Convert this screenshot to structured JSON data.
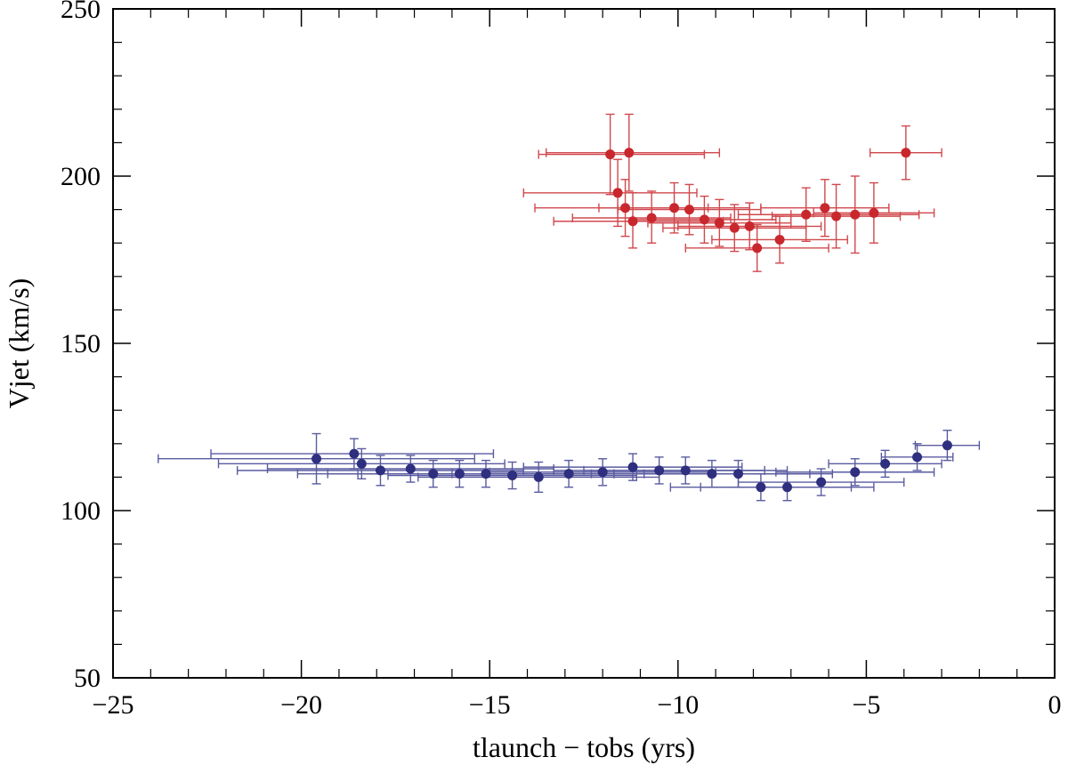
{
  "chart_data": {
    "type": "scatter",
    "title": "",
    "xlabel": "tlaunch − tobs (yrs)",
    "ylabel": "Vjet (km/s)",
    "xlim": [
      -25,
      0
    ],
    "ylim": [
      50,
      250
    ],
    "xticks": [
      -25,
      -20,
      -15,
      -10,
      -5,
      0
    ],
    "xtick_labels": [
      "−25",
      "−20",
      "−15",
      "−10",
      "−5",
      "0"
    ],
    "yticks": [
      50,
      100,
      150,
      200,
      250
    ],
    "ytick_labels": [
      "50",
      "100",
      "150",
      "200",
      "250"
    ],
    "grid": false,
    "series": [
      {
        "name": "red",
        "color": "#c8282d",
        "errcolor": "#d0484d",
        "points": [
          {
            "x": -11.8,
            "y": 206.5,
            "xlo": -13.7,
            "xhi": -9.3,
            "ylo": 194.5,
            "yhi": 218.5
          },
          {
            "x": -11.3,
            "y": 207.0,
            "xlo": -13.5,
            "xhi": -8.9,
            "ylo": 195.5,
            "yhi": 218.5
          },
          {
            "x": -11.6,
            "y": 195.0,
            "xlo": -14.1,
            "xhi": -9.5,
            "ylo": 185.0,
            "yhi": 205.0
          },
          {
            "x": -11.4,
            "y": 190.5,
            "xlo": -13.8,
            "xhi": -9.2,
            "ylo": 182.0,
            "yhi": 199.0
          },
          {
            "x": -11.2,
            "y": 186.5,
            "xlo": -13.3,
            "xhi": -8.8,
            "ylo": 178.5,
            "yhi": 195.0
          },
          {
            "x": -10.7,
            "y": 187.5,
            "xlo": -12.8,
            "xhi": -8.6,
            "ylo": 180.0,
            "yhi": 195.5
          },
          {
            "x": -10.1,
            "y": 190.5,
            "xlo": -12.1,
            "xhi": -8.1,
            "ylo": 183.0,
            "yhi": 198.0
          },
          {
            "x": -9.7,
            "y": 190.0,
            "xlo": -11.6,
            "xhi": -7.8,
            "ylo": 182.5,
            "yhi": 197.5
          },
          {
            "x": -9.3,
            "y": 187.0,
            "xlo": -11.2,
            "xhi": -7.4,
            "ylo": 180.0,
            "yhi": 194.0
          },
          {
            "x": -8.9,
            "y": 186.0,
            "xlo": -10.8,
            "xhi": -7.0,
            "ylo": 179.0,
            "yhi": 193.0
          },
          {
            "x": -8.5,
            "y": 184.5,
            "xlo": -10.4,
            "xhi": -6.6,
            "ylo": 177.5,
            "yhi": 191.5
          },
          {
            "x": -8.1,
            "y": 185.0,
            "xlo": -10.0,
            "xhi": -6.2,
            "ylo": 178.0,
            "yhi": 192.0
          },
          {
            "x": -7.9,
            "y": 178.5,
            "xlo": -9.8,
            "xhi": -6.0,
            "ylo": 171.5,
            "yhi": 185.5
          },
          {
            "x": -7.3,
            "y": 181.0,
            "xlo": -9.1,
            "xhi": -5.5,
            "ylo": 174.0,
            "yhi": 188.0
          },
          {
            "x": -6.6,
            "y": 188.5,
            "xlo": -8.4,
            "xhi": -4.8,
            "ylo": 180.5,
            "yhi": 196.5
          },
          {
            "x": -6.1,
            "y": 190.5,
            "xlo": -7.8,
            "xhi": -4.4,
            "ylo": 182.0,
            "yhi": 199.0
          },
          {
            "x": -5.8,
            "y": 188.0,
            "xlo": -7.5,
            "xhi": -4.1,
            "ylo": 178.5,
            "yhi": 197.5
          },
          {
            "x": -5.3,
            "y": 188.5,
            "xlo": -7.0,
            "xhi": -3.6,
            "ylo": 177.0,
            "yhi": 200.0
          },
          {
            "x": -4.8,
            "y": 189.0,
            "xlo": -6.4,
            "xhi": -3.2,
            "ylo": 180.0,
            "yhi": 198.0
          },
          {
            "x": -3.95,
            "y": 207.0,
            "xlo": -4.9,
            "xhi": -3.0,
            "ylo": 199.0,
            "yhi": 215.0
          }
        ]
      },
      {
        "name": "blue",
        "color": "#2e2f7e",
        "errcolor": "#5a5ba0",
        "points": [
          {
            "x": -19.6,
            "y": 115.5,
            "xlo": -23.8,
            "xhi": -15.4,
            "ylo": 108.0,
            "yhi": 123.0
          },
          {
            "x": -18.6,
            "y": 117.0,
            "xlo": -22.4,
            "xhi": -14.9,
            "ylo": 112.5,
            "yhi": 121.5
          },
          {
            "x": -18.4,
            "y": 114.0,
            "xlo": -22.2,
            "xhi": -14.6,
            "ylo": 109.5,
            "yhi": 118.5
          },
          {
            "x": -17.9,
            "y": 112.0,
            "xlo": -21.7,
            "xhi": -14.1,
            "ylo": 107.5,
            "yhi": 116.5
          },
          {
            "x": -17.1,
            "y": 112.5,
            "xlo": -20.9,
            "xhi": -13.3,
            "ylo": 108.5,
            "yhi": 116.5
          },
          {
            "x": -16.5,
            "y": 111.0,
            "xlo": -20.1,
            "xhi": -12.9,
            "ylo": 107.0,
            "yhi": 115.0
          },
          {
            "x": -15.8,
            "y": 111.0,
            "xlo": -19.3,
            "xhi": -12.3,
            "ylo": 107.0,
            "yhi": 115.0
          },
          {
            "x": -15.1,
            "y": 111.0,
            "xlo": -18.5,
            "xhi": -11.7,
            "ylo": 107.0,
            "yhi": 115.0
          },
          {
            "x": -14.4,
            "y": 110.5,
            "xlo": -17.7,
            "xhi": -11.1,
            "ylo": 106.5,
            "yhi": 114.5
          },
          {
            "x": -13.7,
            "y": 110.0,
            "xlo": -16.9,
            "xhi": -10.5,
            "ylo": 105.5,
            "yhi": 114.5
          },
          {
            "x": -12.9,
            "y": 111.0,
            "xlo": -16.0,
            "xhi": -9.8,
            "ylo": 107.0,
            "yhi": 115.0
          },
          {
            "x": -12.0,
            "y": 111.5,
            "xlo": -15.0,
            "xhi": -9.0,
            "ylo": 107.5,
            "yhi": 115.5
          },
          {
            "x": -11.2,
            "y": 113.0,
            "xlo": -14.1,
            "xhi": -8.3,
            "ylo": 109.0,
            "yhi": 117.0
          },
          {
            "x": -10.5,
            "y": 112.0,
            "xlo": -13.3,
            "xhi": -7.7,
            "ylo": 108.0,
            "yhi": 116.0
          },
          {
            "x": -9.8,
            "y": 112.0,
            "xlo": -12.5,
            "xhi": -7.1,
            "ylo": 108.0,
            "yhi": 116.0
          },
          {
            "x": -9.1,
            "y": 111.0,
            "xlo": -11.7,
            "xhi": -6.5,
            "ylo": 107.0,
            "yhi": 115.0
          },
          {
            "x": -8.4,
            "y": 111.0,
            "xlo": -10.9,
            "xhi": -5.9,
            "ylo": 107.0,
            "yhi": 115.0
          },
          {
            "x": -7.8,
            "y": 107.0,
            "xlo": -10.2,
            "xhi": -5.4,
            "ylo": 103.0,
            "yhi": 111.0
          },
          {
            "x": -7.1,
            "y": 107.0,
            "xlo": -9.4,
            "xhi": -4.8,
            "ylo": 103.0,
            "yhi": 111.0
          },
          {
            "x": -6.2,
            "y": 108.5,
            "xlo": -8.4,
            "xhi": -4.0,
            "ylo": 104.5,
            "yhi": 112.5
          },
          {
            "x": -5.3,
            "y": 111.5,
            "xlo": -7.4,
            "xhi": -3.2,
            "ylo": 107.5,
            "yhi": 115.5
          },
          {
            "x": -4.5,
            "y": 114.0,
            "xlo": -6.0,
            "xhi": -3.0,
            "ylo": 110.0,
            "yhi": 118.0
          },
          {
            "x": -3.65,
            "y": 116.0,
            "xlo": -4.6,
            "xhi": -2.7,
            "ylo": 112.0,
            "yhi": 120.0
          },
          {
            "x": -2.85,
            "y": 119.5,
            "xlo": -3.7,
            "xhi": -2.0,
            "ylo": 115.0,
            "yhi": 124.0
          }
        ]
      }
    ]
  }
}
